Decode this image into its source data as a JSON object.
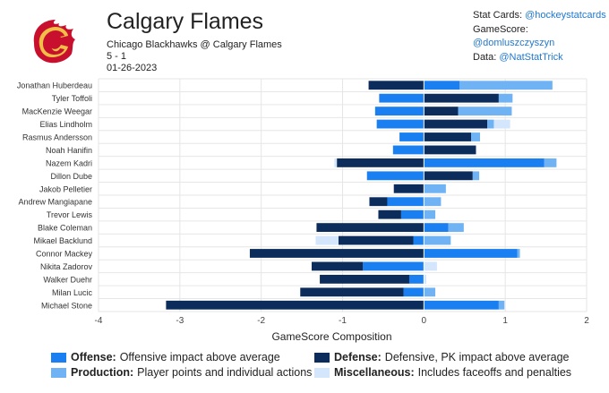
{
  "header": {
    "title": "Calgary Flames",
    "matchup": "Chicago Blackhawks @ Calgary Flames",
    "score": "5 - 1",
    "date": "01-26-2023"
  },
  "credits": [
    {
      "label": "Stat Cards:",
      "handle": "@hockeystatcards"
    },
    {
      "label": "GameScore:",
      "handle": "@domluszczyszyn"
    },
    {
      "label": "Data:",
      "handle": "@NatStatTrick"
    }
  ],
  "colors": {
    "offense": "#1a7ff0",
    "defense": "#0c2d5c",
    "production": "#6fb3f5",
    "misc": "#d3e6fb",
    "brand_red": "#c8102e",
    "brand_gold": "#f1be48"
  },
  "legend": [
    {
      "key": "offense",
      "title": "Offense:",
      "desc": "Offensive impact above average"
    },
    {
      "key": "defense",
      "title": "Defense:",
      "desc": "Defensive, PK impact above average"
    },
    {
      "key": "production",
      "title": "Production:",
      "desc": "Player points and individual actions"
    },
    {
      "key": "misc",
      "title": "Miscellaneous:",
      "desc": "Includes faceoffs and penalties"
    }
  ],
  "chart_data": {
    "type": "bar",
    "orientation": "horizontal-stacked",
    "xlabel": "GameScore Composition",
    "xlim": [
      -4,
      2
    ],
    "xticks": [
      -4,
      -3,
      -2,
      -1,
      0,
      1,
      2
    ],
    "grid": true,
    "categories": [
      "Jonathan Huberdeau",
      "Tyler Toffoli",
      "MacKenzie Weegar",
      "Elias Lindholm",
      "Rasmus Andersson",
      "Noah Hanifin",
      "Nazem Kadri",
      "Dillon Dube",
      "Jakob Pelletier",
      "Andrew Mangiapane",
      "Trevor Lewis",
      "Blake Coleman",
      "Mikael Backlund",
      "Connor Mackey",
      "Nikita Zadorov",
      "Walker Duehr",
      "Milan Lucic",
      "Michael Stone"
    ],
    "series": [
      {
        "name": "Offense",
        "key": "offense",
        "values": [
          0.44,
          -0.55,
          -0.6,
          -0.58,
          -0.3,
          -0.38,
          1.48,
          -0.7,
          0.0,
          -0.45,
          -0.28,
          0.3,
          -0.13,
          1.15,
          -0.75,
          -0.18,
          -0.25,
          0.92
        ]
      },
      {
        "name": "Defense",
        "key": "defense",
        "values": [
          -0.68,
          0.92,
          0.42,
          0.78,
          0.58,
          0.64,
          -1.07,
          0.6,
          -0.37,
          -0.22,
          -0.28,
          -1.32,
          -0.92,
          -2.14,
          -0.63,
          -1.1,
          -1.27,
          -3.17
        ]
      },
      {
        "name": "Production",
        "key": "production",
        "values": [
          1.14,
          0.17,
          0.66,
          0.08,
          0.11,
          0.0,
          0.15,
          0.08,
          0.27,
          0.21,
          0.14,
          0.19,
          0.33,
          0.03,
          0.0,
          0.0,
          0.14,
          0.07
        ]
      },
      {
        "name": "Miscellaneous",
        "key": "misc",
        "values": [
          0.0,
          0.0,
          0.0,
          0.2,
          0.0,
          0.0,
          -0.03,
          0.0,
          0.0,
          0.0,
          0.0,
          0.0,
          -0.28,
          0.0,
          0.16,
          0.03,
          0.0,
          0.0
        ]
      }
    ]
  }
}
